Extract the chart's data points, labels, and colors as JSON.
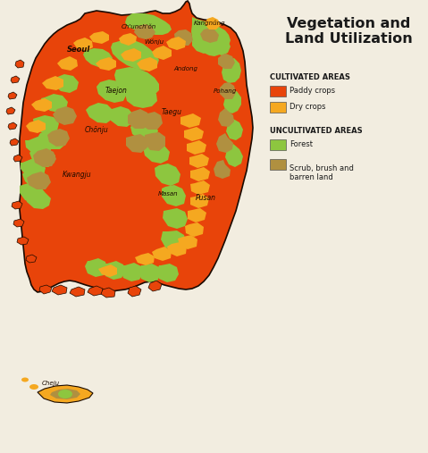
{
  "title": "Vegetation and\nLand Utilization",
  "title_fontsize": 12,
  "background_color": "#f2ede0",
  "cultivated_header": "CULTIVATED AREAS",
  "uncultivated_header": "UNCULTIVATED AREAS",
  "paddy_color": "#e8440a",
  "dry_color": "#f5a820",
  "forest_color": "#8dc63f",
  "scrub_color": "#b09040",
  "outline_color": "#1a0a00",
  "legend_items": [
    {
      "label": "Paddy crops",
      "color": "#e8440a"
    },
    {
      "label": "Dry crops",
      "color": "#f5a820"
    },
    {
      "label": "Forest",
      "color": "#8dc63f"
    },
    {
      "label": "Scrub, brush and\nbarren land",
      "color": "#b09040"
    }
  ]
}
